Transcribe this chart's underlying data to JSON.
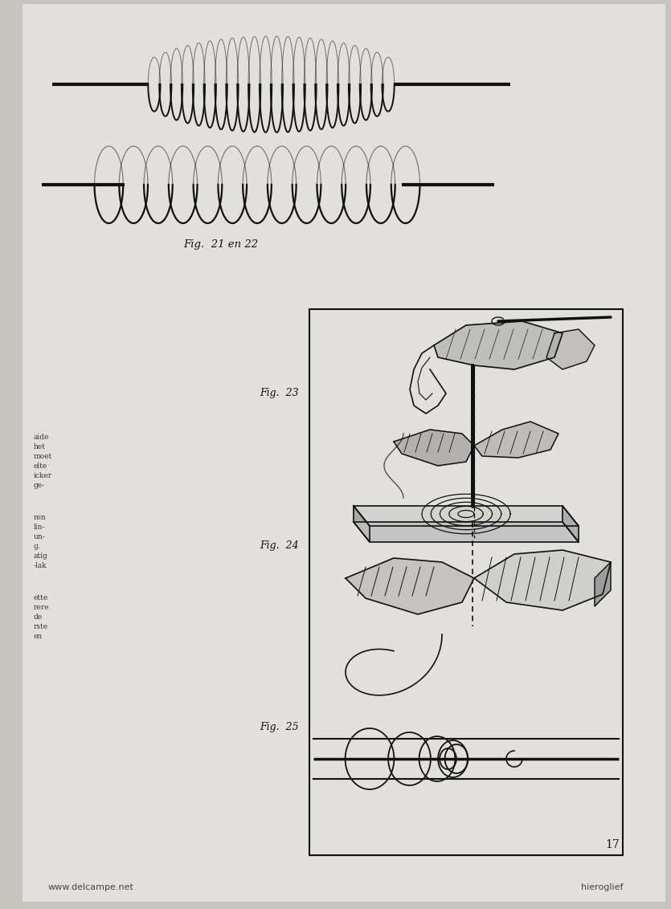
{
  "background_color": "#c8c4c0",
  "page_color": "#e2e0dc",
  "fig21_label": "Fig.  21 en 22",
  "fig23_label": "Fig.  23",
  "fig24_label": "Fig.  24",
  "fig25_label": "Fig.  25",
  "page_number": "17",
  "watermark_left": "www.delcampe.net",
  "watermark_right": "hieroglief",
  "line_color": "#111111",
  "line_width": 1.2
}
